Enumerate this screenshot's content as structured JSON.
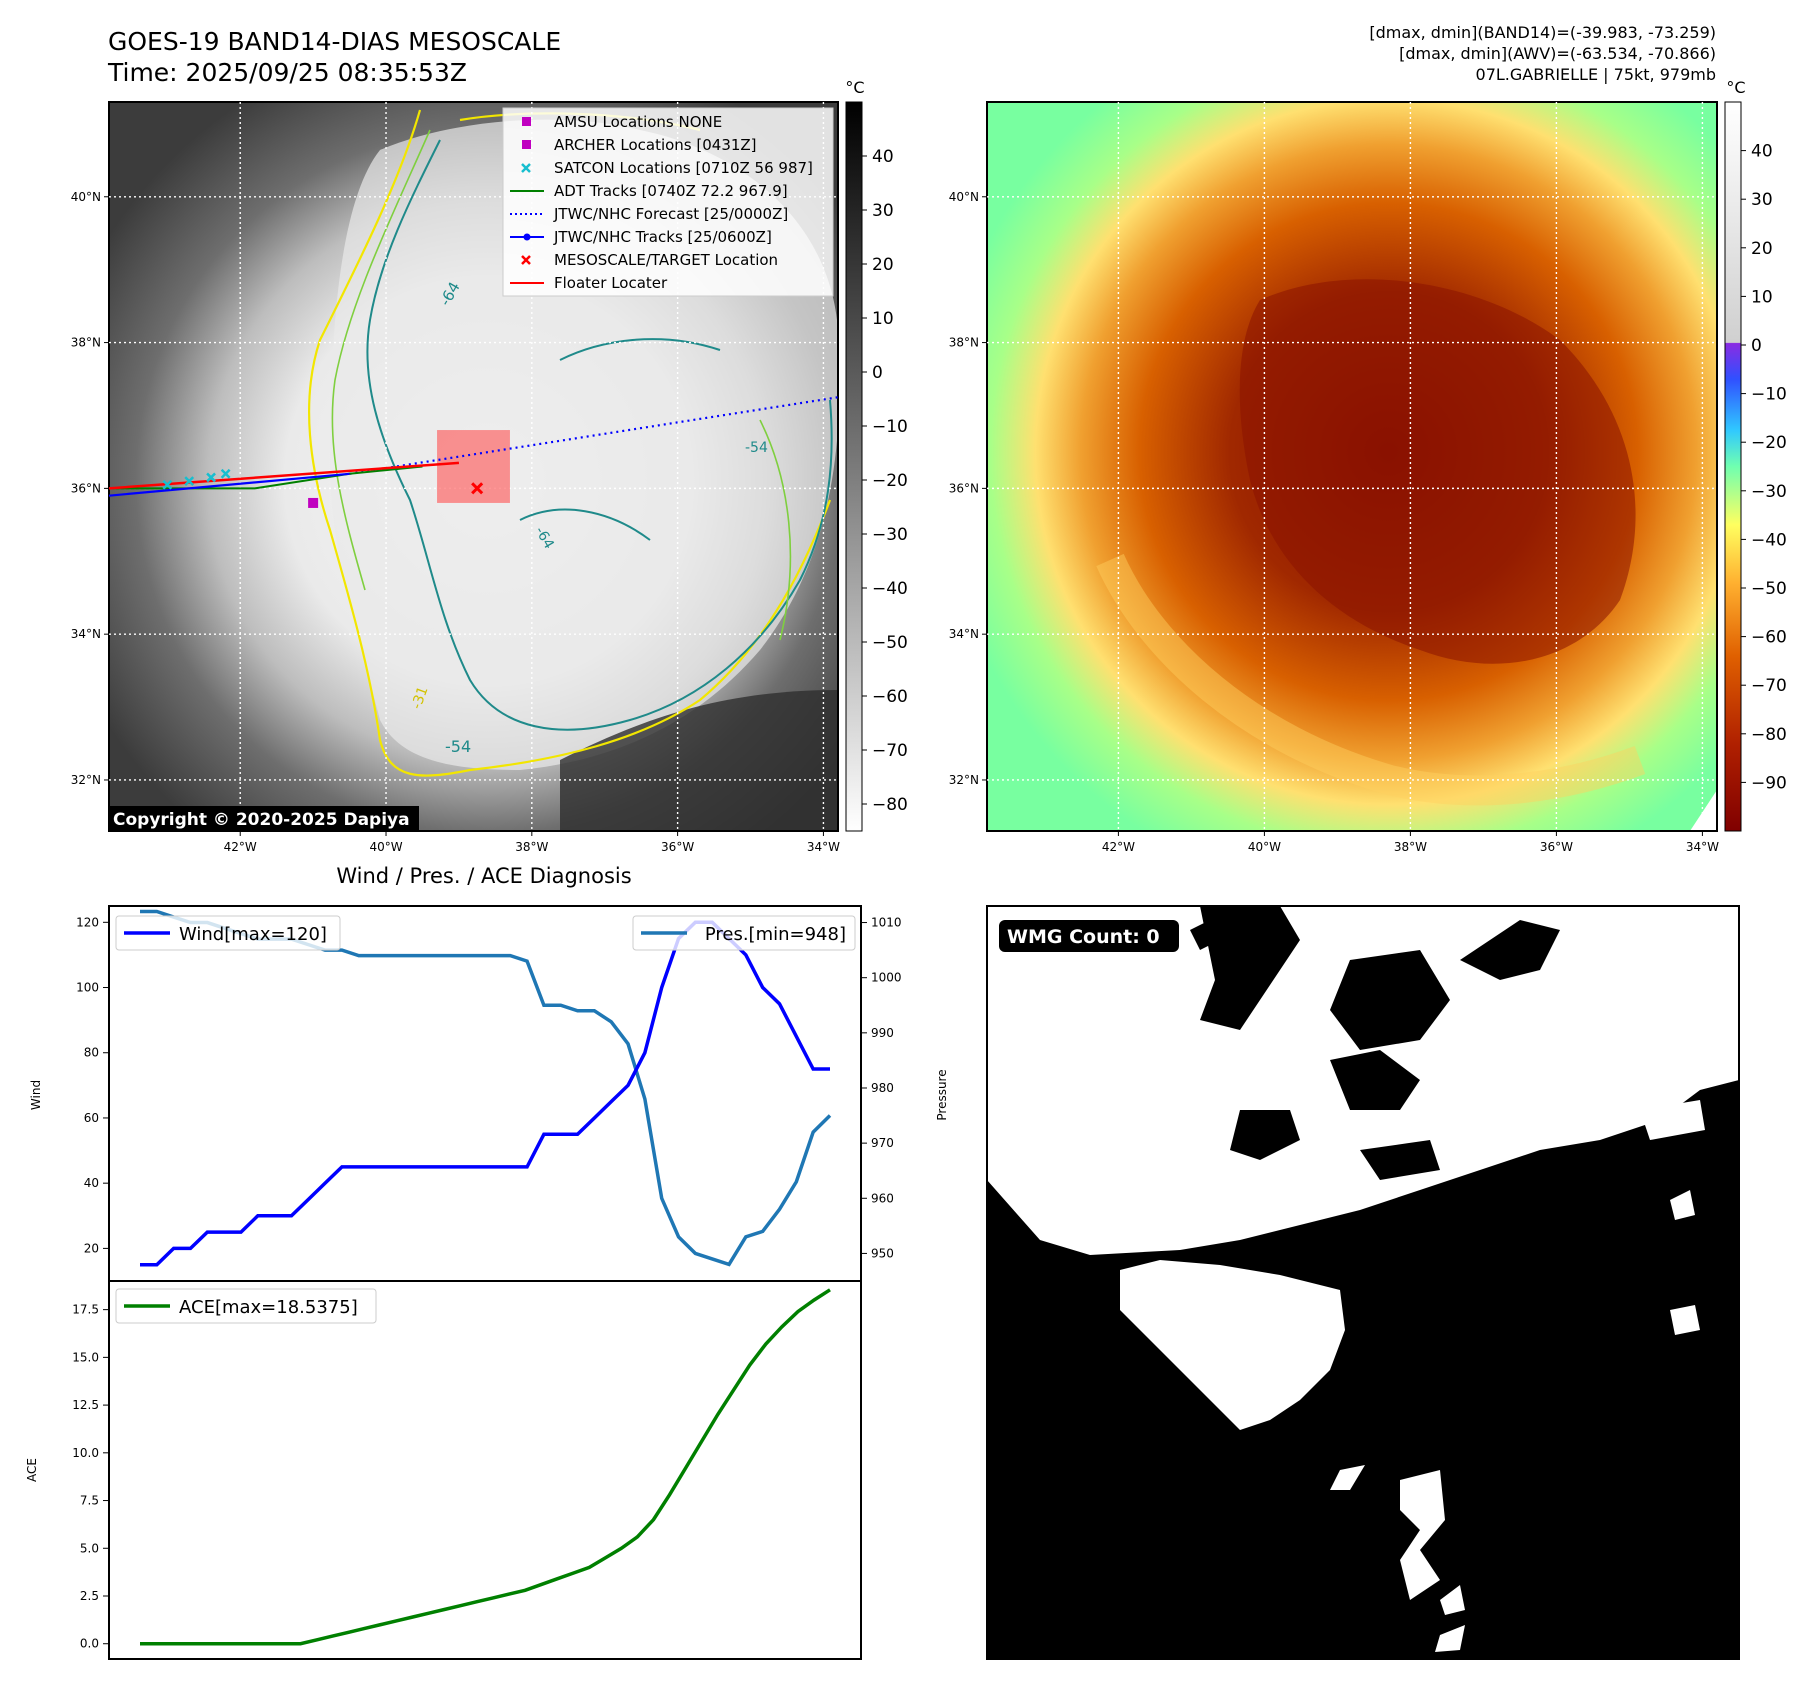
{
  "header": {
    "title_line1": "GOES-19 BAND14-DIAS MESOSCALE",
    "title_line2": "Time: 2025/09/25 08:35:53Z",
    "info_line1": "[dmax, dmin](BAND14)=(-39.983, -73.259)",
    "info_line2": "[dmax, dmin](AWV)=(-63.534, -70.866)",
    "info_line3": "07L.GABRIELLE | 75kt, 979mb"
  },
  "map": {
    "lat_labels": [
      "40°N",
      "38°N",
      "36°N",
      "34°N",
      "32°N"
    ],
    "lat_values": [
      40,
      38,
      36,
      34,
      32
    ],
    "lon_labels": [
      "42°W",
      "40°W",
      "38°W",
      "36°W",
      "34°W"
    ],
    "lon_values": [
      -42,
      -40,
      -38,
      -36,
      -34
    ],
    "extent": {
      "lon": [
        -43.8,
        -33.8
      ],
      "lat": [
        31.3,
        41.3
      ]
    },
    "copyright": "Copyright © 2020-2025 Dapiya",
    "contour_labels": [
      "-64",
      "-54",
      "-31",
      "-64",
      "-54"
    ],
    "legend": [
      {
        "label": "AMSU Locations NONE",
        "marker": "square",
        "color": "#c000c0"
      },
      {
        "label": "ARCHER Locations [0431Z]",
        "marker": "square",
        "color": "#c000c0"
      },
      {
        "label": "SATCON Locations [0710Z 56 987]",
        "marker": "x",
        "color": "#17becf"
      },
      {
        "label": "ADT Tracks [0740Z 72.2 967.9]",
        "marker": "line",
        "color": "#008000"
      },
      {
        "label": "JTWC/NHC Forecast [25/0000Z]",
        "marker": "dotted",
        "color": "#0000ff"
      },
      {
        "label": "JTWC/NHC Tracks [25/0600Z]",
        "marker": "line-dot",
        "color": "#0000ff"
      },
      {
        "label": "MESOSCALE/TARGET Location",
        "marker": "x",
        "color": "#ff0000"
      },
      {
        "label": "Floater Locater",
        "marker": "line",
        "color": "#ff0000"
      }
    ],
    "archer_fix": [
      -41,
      35.8
    ],
    "target_location": [
      -38.75,
      36.0
    ],
    "floater_box": {
      "lon": [
        -39.3,
        -38.3
      ],
      "lat": [
        35.8,
        36.8
      ]
    },
    "jtwc_track": [
      [
        -43.8,
        35.9
      ],
      [
        -40.5,
        36.2
      ]
    ],
    "jtwc_forecast": [
      [
        -40.5,
        36.2
      ],
      [
        -33.8,
        37.25
      ]
    ],
    "floater_track": [
      [
        -43.8,
        36.0
      ],
      [
        -39.0,
        36.35
      ]
    ],
    "adt_track": [
      [
        -43.8,
        36.0
      ],
      [
        -41.8,
        36.0
      ],
      [
        -40.5,
        36.2
      ],
      [
        -39.5,
        36.3
      ]
    ],
    "satcon_fixes": [
      [
        -43.0,
        36.05
      ],
      [
        -42.7,
        36.1
      ],
      [
        -42.4,
        36.15
      ],
      [
        -42.2,
        36.2
      ]
    ]
  },
  "colorbar_left": {
    "unit": "°C",
    "ticks": [
      "40",
      "30",
      "20",
      "10",
      "0",
      "−10",
      "−20",
      "−30",
      "−40",
      "−50",
      "−60",
      "−70",
      "−80"
    ],
    "tick_values": [
      40,
      30,
      20,
      10,
      0,
      -10,
      -20,
      -30,
      -40,
      -50,
      -60,
      -70,
      -80
    ],
    "range": [
      -85,
      50
    ]
  },
  "colorbar_right": {
    "unit": "°C",
    "ticks": [
      "40",
      "30",
      "20",
      "10",
      "0",
      "−10",
      "−20",
      "−30",
      "−40",
      "−50",
      "−60",
      "−70",
      "−80",
      "−90"
    ],
    "tick_values": [
      40,
      30,
      20,
      10,
      0,
      -10,
      -20,
      -30,
      -40,
      -50,
      -60,
      -70,
      -80,
      -90
    ],
    "range": [
      -100,
      50
    ]
  },
  "wmg": {
    "badge": "WMG Count: 0"
  },
  "chart_data": [
    {
      "type": "line",
      "title": "Wind / Pres. / ACE Diagnosis",
      "ylabel": "Wind",
      "y2label": "Pressure",
      "ylim": [
        10,
        125
      ],
      "y2lim": [
        945,
        1013
      ],
      "yticks": [
        20,
        40,
        60,
        80,
        100,
        120
      ],
      "y2ticks": [
        950,
        960,
        970,
        980,
        990,
        1000,
        1010
      ],
      "series": [
        {
          "name": "Wind[max=120]",
          "axis": "left",
          "color": "#0000ff",
          "values": [
            15,
            15,
            20,
            20,
            25,
            25,
            25,
            30,
            30,
            30,
            35,
            40,
            45,
            45,
            45,
            45,
            45,
            45,
            45,
            45,
            45,
            45,
            45,
            45,
            55,
            55,
            55,
            60,
            65,
            70,
            80,
            100,
            115,
            120,
            120,
            115,
            110,
            100,
            95,
            85,
            75,
            75
          ]
        },
        {
          "name": "Pres.[min=948]",
          "axis": "right",
          "color": "#1f77b4",
          "values": [
            1012,
            1012,
            1011,
            1010,
            1010,
            1009,
            1008,
            1007,
            1007,
            1007,
            1006,
            1005,
            1005,
            1004,
            1004,
            1004,
            1004,
            1004,
            1004,
            1004,
            1004,
            1004,
            1004,
            1003,
            995,
            995,
            994,
            994,
            992,
            988,
            978,
            960,
            953,
            950,
            949,
            948,
            953,
            954,
            958,
            963,
            972,
            975
          ]
        }
      ]
    },
    {
      "type": "line",
      "ylabel": "ACE",
      "ylim": [
        -0.8,
        19.0
      ],
      "yticks": [
        0.0,
        2.5,
        5.0,
        7.5,
        10.0,
        12.5,
        15.0,
        17.5
      ],
      "ytick_labels": [
        "0.0",
        "2.5",
        "5.0",
        "7.5",
        "10.0",
        "12.5",
        "15.0",
        "17.5"
      ],
      "series": [
        {
          "name": "ACE[max=18.5375]",
          "color": "#008000",
          "values": [
            0,
            0,
            0,
            0,
            0,
            0,
            0,
            0,
            0,
            0,
            0,
            0.2,
            0.4,
            0.6,
            0.8,
            1.0,
            1.2,
            1.4,
            1.6,
            1.8,
            2.0,
            2.2,
            2.4,
            2.6,
            2.8,
            3.1,
            3.4,
            3.7,
            4.0,
            4.5,
            5.0,
            5.6,
            6.5,
            7.8,
            9.2,
            10.6,
            12.0,
            13.3,
            14.6,
            15.7,
            16.6,
            17.4,
            18.0,
            18.5375
          ]
        }
      ]
    }
  ]
}
